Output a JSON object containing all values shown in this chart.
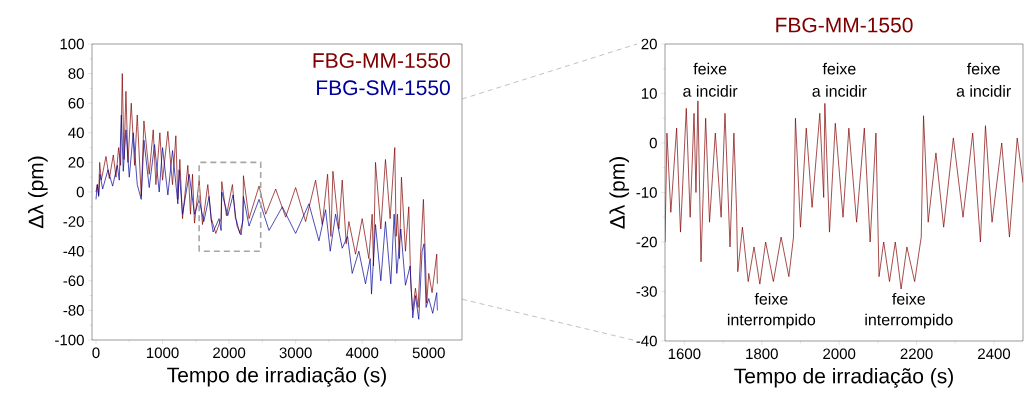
{
  "chart_data": [
    {
      "type": "line",
      "xlabel": "Tempo de irradiação (s)",
      "ylabel": "Δλ (pm)",
      "xlim": [
        -60,
        5500
      ],
      "ylim": [
        -100,
        100
      ],
      "xticks": [
        0,
        1000,
        2000,
        3000,
        4000,
        5000
      ],
      "yticks": [
        -100,
        -80,
        -60,
        -40,
        -20,
        0,
        20,
        40,
        60,
        80,
        100
      ],
      "legend": "top right",
      "line_style": "solid",
      "marker": "none",
      "series": [
        {
          "name": "FBG-MM-1550",
          "color": "#800000",
          "x": [
            0,
            20,
            40,
            55,
            80,
            150,
            200,
            260,
            300,
            340,
            370,
            395,
            420,
            450,
            480,
            530,
            580,
            620,
            680,
            720,
            800,
            860,
            900,
            960,
            1000,
            1080,
            1150,
            1200,
            1230,
            1260,
            1300,
            1380,
            1420,
            1450,
            1480,
            1550,
            1600,
            1680,
            1735,
            1740,
            1800,
            1880,
            1890,
            1960,
            2050,
            2095,
            2110,
            2160,
            2210,
            2215,
            2300,
            2450,
            2550,
            2700,
            2850,
            3000,
            3150,
            3300,
            3400,
            3480,
            3530,
            3560,
            3650,
            3700,
            3760,
            3800,
            3900,
            4000,
            4100,
            4150,
            4170,
            4200,
            4280,
            4350,
            4420,
            4490,
            4510,
            4530,
            4560,
            4590,
            4650,
            4700,
            4730,
            4760,
            4800,
            4840,
            4880,
            4920,
            4950,
            4970,
            5000,
            5050,
            5120,
            5130
          ],
          "values": [
            0,
            5,
            -2,
            20,
            8,
            24,
            9,
            25,
            10,
            30,
            18,
            80,
            22,
            68,
            20,
            60,
            18,
            52,
            -3,
            48,
            12,
            42,
            5,
            40,
            8,
            41,
            5,
            38,
            -5,
            22,
            -18,
            18,
            -15,
            12,
            -21,
            8,
            -22,
            5,
            -20,
            -19,
            -28,
            -18,
            7,
            -16,
            5,
            -18,
            -19,
            -28,
            -19,
            11,
            -18,
            4,
            -15,
            2,
            -17,
            3,
            -20,
            8,
            -22,
            12,
            -30,
            14,
            -25,
            8,
            -35,
            -20,
            -42,
            -18,
            -45,
            -15,
            -50,
            20,
            -25,
            22,
            -18,
            30,
            -30,
            -15,
            -45,
            10,
            -40,
            -10,
            -62,
            -80,
            -65,
            -78,
            -40,
            -5,
            -45,
            -75,
            -55,
            -68,
            -42,
            -62
          ]
        },
        {
          "name": "FBG-SM-1550",
          "color": "#000099",
          "x": [
            0,
            20,
            40,
            60,
            100,
            180,
            250,
            320,
            350,
            380,
            410,
            450,
            500,
            560,
            620,
            680,
            720,
            800,
            880,
            950,
            1000,
            1080,
            1150,
            1230,
            1250,
            1300,
            1400,
            1480,
            1550,
            1620,
            1700,
            1735,
            1760,
            1850,
            1880,
            1890,
            1980,
            2060,
            2100,
            2120,
            2180,
            2200,
            2215,
            2300,
            2450,
            2600,
            2800,
            3000,
            3200,
            3350,
            3450,
            3520,
            3600,
            3700,
            3780,
            3850,
            3950,
            4050,
            4120,
            4140,
            4200,
            4280,
            4350,
            4430,
            4480,
            4520,
            4580,
            4650,
            4720,
            4760,
            4800,
            4850,
            4900,
            4930,
            4960,
            5000,
            5060,
            5120,
            5130
          ],
          "values": [
            -5,
            5,
            -3,
            12,
            2,
            15,
            4,
            18,
            8,
            52,
            14,
            42,
            10,
            40,
            5,
            -5,
            35,
            3,
            32,
            0,
            30,
            -2,
            28,
            -8,
            15,
            -15,
            12,
            -15,
            -5,
            -20,
            -3,
            -20,
            -27,
            -18,
            -26,
            0,
            -16,
            -2,
            -17,
            -23,
            -29,
            -22,
            -3,
            -23,
            -5,
            -26,
            -10,
            -28,
            -8,
            -33,
            -12,
            -40,
            -15,
            -38,
            -30,
            -55,
            -40,
            -62,
            -45,
            -69,
            -22,
            -60,
            -20,
            -62,
            -15,
            -55,
            -25,
            -63,
            -50,
            -85,
            -70,
            -86,
            -40,
            -35,
            -78,
            -72,
            -82,
            -68,
            -80
          ]
        }
      ]
    },
    {
      "type": "line",
      "title": "FBG-MM-1550",
      "xlabel": "Tempo de irradiação (s)",
      "ylabel": "Δλ (pm)",
      "xlim": [
        1550,
        2475
      ],
      "ylim": [
        -40,
        20
      ],
      "xticks": [
        1600,
        1800,
        2000,
        2200,
        2400
      ],
      "yticks": [
        -40,
        -30,
        -20,
        -10,
        0,
        10,
        20
      ],
      "line_style": "solid",
      "marker": "none",
      "series": [
        {
          "color": "#800000",
          "x": [
            1550,
            1555,
            1565,
            1580,
            1590,
            1605,
            1615,
            1625,
            1630,
            1635,
            1643,
            1655,
            1665,
            1680,
            1695,
            1705,
            1718,
            1728,
            1735,
            1738,
            1750,
            1765,
            1780,
            1795,
            1810,
            1830,
            1850,
            1870,
            1882,
            1887,
            1900,
            1915,
            1930,
            1950,
            1960,
            1963,
            1975,
            1990,
            2010,
            2025,
            2045,
            2065,
            2080,
            2095,
            2100,
            2103,
            2115,
            2130,
            2145,
            2160,
            2175,
            2195,
            2212,
            2218,
            2230,
            2250,
            2270,
            2295,
            2320,
            2345,
            2365,
            2378,
            2395,
            2420,
            2440,
            2460,
            2475
          ],
          "values": [
            -20,
            2,
            -14,
            3,
            -18,
            7,
            -15,
            6,
            -10,
            8.5,
            -24,
            5,
            -16,
            2,
            -15,
            6,
            -21,
            2,
            -14,
            -26,
            -17,
            -28,
            -21,
            -28.5,
            -20,
            -28,
            -19,
            -27,
            -19,
            5,
            -17,
            3,
            -13,
            6,
            -11,
            8,
            -18,
            4,
            -15,
            3,
            -16,
            3,
            -20,
            2,
            -16,
            -27,
            -20,
            -28,
            -20,
            -29.5,
            -21,
            -28,
            -19,
            5.5,
            -16,
            -2,
            -17,
            1,
            -15,
            2,
            -20,
            3.5,
            -16,
            0,
            -19,
            1,
            -8
          ]
        }
      ],
      "annotations": [
        "feixe",
        "a incidir",
        "feixe",
        "a incidir",
        "feixe",
        "a incidir",
        "feixe",
        "interrompido",
        "feixe",
        "interrompido"
      ]
    }
  ]
}
